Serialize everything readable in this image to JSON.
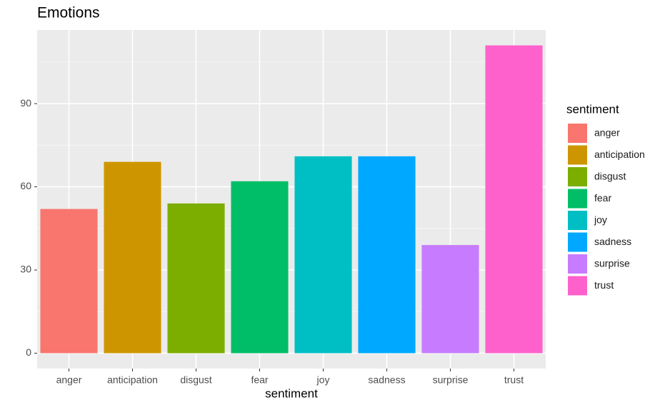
{
  "chart_data": {
    "type": "bar",
    "title": "Emotions",
    "x_label": "sentiment",
    "categories": [
      "anger",
      "anticipation",
      "disgust",
      "fear",
      "joy",
      "sadness",
      "surprise",
      "trust"
    ],
    "values": [
      52,
      69,
      54,
      62,
      71,
      71,
      39,
      111
    ],
    "colors": [
      "#F8766D",
      "#CD9600",
      "#7CAE00",
      "#00BE67",
      "#00BFC4",
      "#00A9FF",
      "#C77CFF",
      "#FF61CC"
    ],
    "ylim": [
      -5.55,
      116.55
    ],
    "yticks": [
      0,
      30,
      60,
      90
    ],
    "grid": true,
    "legend": {
      "title": "sentiment",
      "position": "right"
    }
  }
}
